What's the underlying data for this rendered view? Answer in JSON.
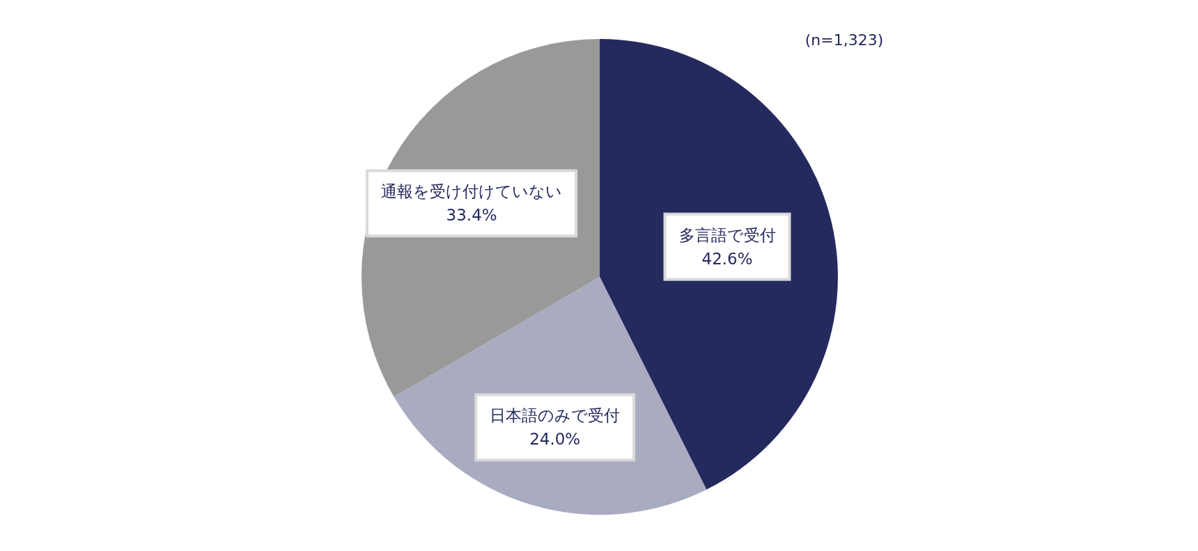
{
  "chart_data": {
    "type": "pie",
    "categories": [
      "多言語で受付",
      "日本語のみで受付",
      "通報を受け付けていない"
    ],
    "values": [
      42.6,
      24.0,
      33.4
    ],
    "value_labels": [
      "42.6%",
      "24.0%",
      "33.4%"
    ],
    "colors": [
      "#252a5e",
      "#a9abc0",
      "#999999"
    ],
    "annotations": [
      "(n=1,323)"
    ]
  }
}
